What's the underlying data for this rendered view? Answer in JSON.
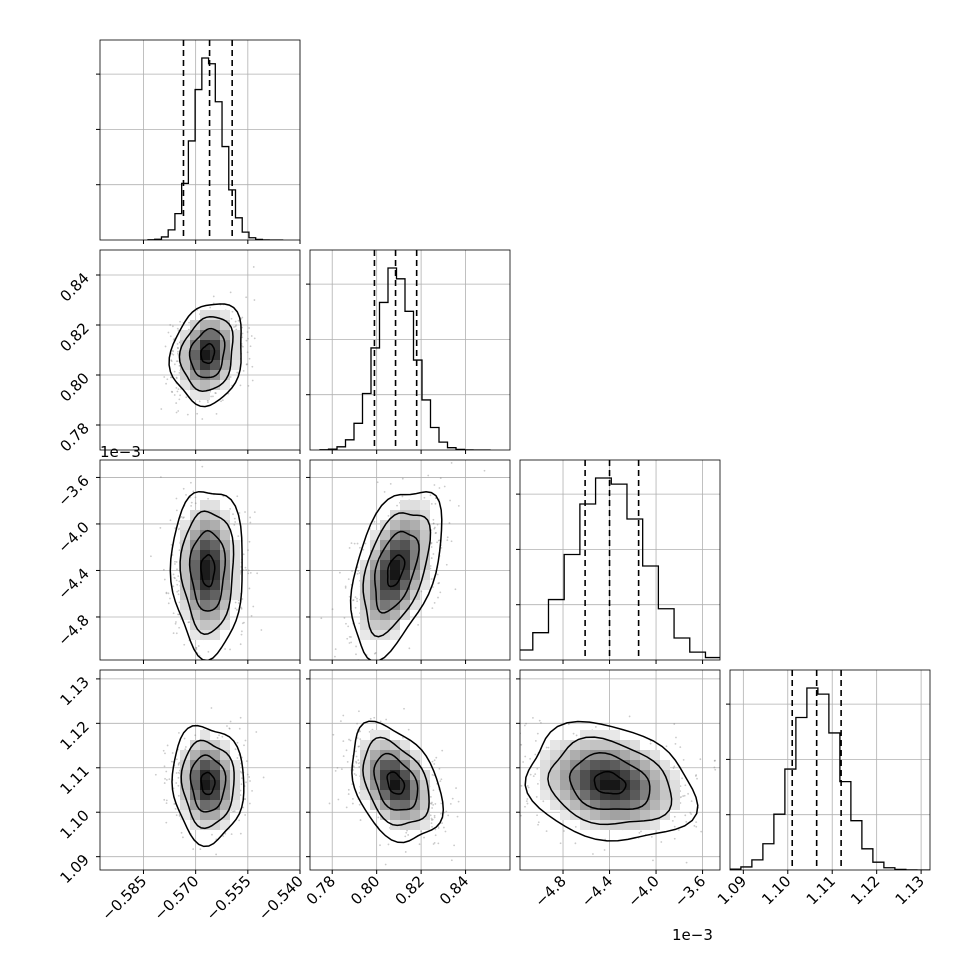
{
  "chart_data": {
    "type": "corner",
    "title": "",
    "grid": true,
    "parameters": [
      {
        "xlim": [
          -0.5975,
          -0.54
        ],
        "ticks": [
          -0.585,
          -0.57,
          -0.555,
          -0.54
        ],
        "tick_labels": [
          "−0.585",
          "−0.570",
          "−0.555",
          "−0.540"
        ],
        "offset_label": "",
        "mean": -0.5665,
        "sd": 0.0043,
        "quantiles": [
          -0.5735,
          -0.566,
          -0.5595
        ]
      },
      {
        "xlim": [
          0.77,
          0.86
        ],
        "ylim": [
          0.77,
          0.85
        ],
        "ticks": [
          0.78,
          0.8,
          0.82,
          0.84
        ],
        "tick_labels": [
          "0.78",
          "0.80",
          "0.82",
          "0.84"
        ],
        "offset_label": "",
        "mean": 0.8085,
        "sd": 0.0085,
        "quantiles": [
          0.799,
          0.8085,
          0.818
        ]
      },
      {
        "xlim": [
          -0.00517,
          -0.00345
        ],
        "ticks": [
          -0.0048,
          -0.0044,
          -0.004,
          -0.0036
        ],
        "tick_labels": [
          "−4.8",
          "−4.4",
          "−4.0",
          "−3.6"
        ],
        "offset_label": "1e−3",
        "mean": -0.0044,
        "sd": 0.0003,
        "quantiles": [
          -0.00461,
          -0.0044,
          -0.00415
        ]
      },
      {
        "xlim": [
          1.087,
          1.132
        ],
        "ticks": [
          1.09,
          1.1,
          1.11,
          1.12,
          1.13
        ],
        "tick_labels": [
          "1.09",
          "1.10",
          "1.11",
          "1.12",
          "1.13"
        ],
        "offset_label": "",
        "mean": 1.1065,
        "sd": 0.0055,
        "quantiles": [
          1.101,
          1.1065,
          1.112
        ]
      }
    ],
    "correlations": {
      "1-0": 0.15,
      "2-0": 0.0,
      "2-1": 0.45,
      "3-0": -0.05,
      "3-1": -0.35,
      "3-2": -0.2
    }
  }
}
